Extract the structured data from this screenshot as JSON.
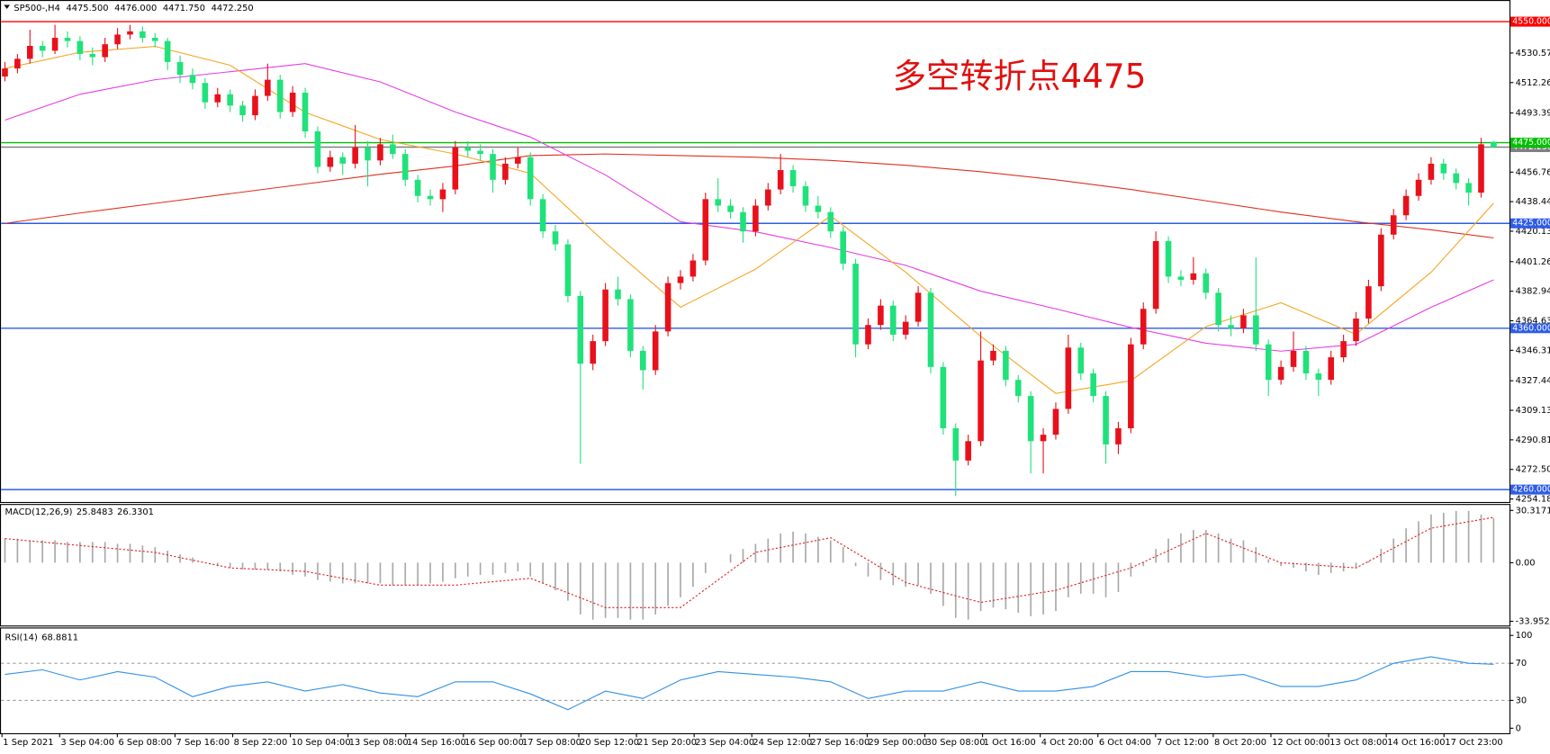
{
  "header": {
    "symbol": "SP500-,H4",
    "ohlc": [
      "4475.500",
      "4476.000",
      "4471.750",
      "4472.250"
    ]
  },
  "chart_data": [
    {
      "type": "candlestick",
      "annotation": "多空转折点4475",
      "up_color": "#e8111b",
      "down_color": "#1fe27a",
      "ylim": [
        4252.3,
        4562.8
      ],
      "yticks": [
        4530.575,
        {
          "value": 4512.26,
          "label": "4512.260"
        },
        {
          "value": 4493.39,
          "label": "4493.390"
        },
        {
          "value": 4456.76,
          "label": "4456.760"
        },
        4438.445,
        {
          "value": 4420.13,
          "label": "4420.130"
        },
        4401.265,
        4382.945,
        {
          "value": 4364.63,
          "label": "4364.630"
        },
        4346.315,
        4327.445,
        {
          "value": 4309.13,
          "label": "4309.130"
        },
        4290.815,
        {
          "value": 4272.5,
          "label": "4272.500"
        },
        4254.185
      ],
      "levels": [
        {
          "value": 4550,
          "label": "4550.000",
          "color": "#ff0000"
        },
        {
          "value": 4472.25,
          "label": "4472.250",
          "color": "#808080"
        },
        {
          "value": 4475,
          "label": "4475.000",
          "color": "#00c000"
        },
        {
          "value": 4425,
          "label": "4425.000",
          "color": "#2e5ce6"
        },
        {
          "value": 4360,
          "label": "4360.000",
          "color": "#2e5ce6"
        },
        {
          "value": 4260,
          "label": "4260.000",
          "color": "#2e5ce6"
        }
      ],
      "candles": [
        [
          4516,
          4525,
          4513,
          4521
        ],
        [
          4521,
          4530,
          4518,
          4527
        ],
        [
          4527,
          4545,
          4524,
          4535
        ],
        [
          4535,
          4538,
          4528,
          4532
        ],
        [
          4532,
          4548,
          4530,
          4540
        ],
        [
          4540,
          4544,
          4534,
          4538
        ],
        [
          4538,
          4541,
          4526,
          4530
        ],
        [
          4530,
          4534,
          4523,
          4528
        ],
        [
          4528,
          4540,
          4525,
          4536
        ],
        [
          4536,
          4546,
          4533,
          4542
        ],
        [
          4542,
          4548,
          4539,
          4544
        ],
        [
          4544,
          4547,
          4537,
          4540
        ],
        [
          4540,
          4543,
          4534,
          4538
        ],
        [
          4538,
          4540,
          4520,
          4525
        ],
        [
          4525,
          4529,
          4512,
          4517
        ],
        [
          4517,
          4521,
          4508,
          4512
        ],
        [
          4512,
          4515,
          4496,
          4500
        ],
        [
          4500,
          4509,
          4497,
          4505
        ],
        [
          4505,
          4508,
          4494,
          4498
        ],
        [
          4498,
          4501,
          4488,
          4492
        ],
        [
          4492,
          4508,
          4489,
          4504
        ],
        [
          4504,
          4524,
          4501,
          4514
        ],
        [
          4514,
          4517,
          4490,
          4494
        ],
        [
          4494,
          4510,
          4491,
          4506
        ],
        [
          4506,
          4509,
          4478,
          4482
        ],
        [
          4482,
          4485,
          4456,
          4460
        ],
        [
          4460,
          4470,
          4457,
          4466
        ],
        [
          4466,
          4469,
          4455,
          4462
        ],
        [
          4462,
          4486,
          4459,
          4472
        ],
        [
          4472,
          4476,
          4448,
          4464
        ],
        [
          4464,
          4478,
          4461,
          4474
        ],
        [
          4474,
          4480,
          4465,
          4468
        ],
        [
          4468,
          4471,
          4448,
          4452
        ],
        [
          4452,
          4455,
          4438,
          4442
        ],
        [
          4442,
          4446,
          4436,
          4440
        ],
        [
          4440,
          4450,
          4432,
          4446
        ],
        [
          4446,
          4476,
          4443,
          4472
        ],
        [
          4472,
          4476,
          4466,
          4470
        ],
        [
          4470,
          4474,
          4464,
          4468
        ],
        [
          4468,
          4471,
          4444,
          4452
        ],
        [
          4452,
          4466,
          4449,
          4462
        ],
        [
          4462,
          4472,
          4459,
          4466
        ],
        [
          4466,
          4469,
          4436,
          4440
        ],
        [
          4440,
          4443,
          4416,
          4420
        ],
        [
          4420,
          4424,
          4408,
          4412
        ],
        [
          4412,
          4415,
          4376,
          4380
        ],
        [
          4380,
          4383,
          4276,
          4338
        ],
        [
          4338,
          4356,
          4334,
          4352
        ],
        [
          4352,
          4388,
          4349,
          4384
        ],
        [
          4384,
          4392,
          4374,
          4378
        ],
        [
          4378,
          4381,
          4342,
          4346
        ],
        [
          4346,
          4349,
          4322,
          4334
        ],
        [
          4334,
          4362,
          4331,
          4358
        ],
        [
          4358,
          4392,
          4355,
          4388
        ],
        [
          4388,
          4396,
          4384,
          4392
        ],
        [
          4392,
          4406,
          4389,
          4402
        ],
        [
          4402,
          4444,
          4399,
          4440
        ],
        [
          4440,
          4453,
          4432,
          4436
        ],
        [
          4436,
          4440,
          4428,
          4432
        ],
        [
          4432,
          4435,
          4413,
          4420
        ],
        [
          4420,
          4440,
          4417,
          4436
        ],
        [
          4436,
          4450,
          4433,
          4446
        ],
        [
          4446,
          4468,
          4443,
          4458
        ],
        [
          4458,
          4461,
          4444,
          4448
        ],
        [
          4448,
          4451,
          4432,
          4436
        ],
        [
          4436,
          4442,
          4428,
          4432
        ],
        [
          4432,
          4435,
          4416,
          4420
        ],
        [
          4420,
          4423,
          4396,
          4400
        ],
        [
          4400,
          4403,
          4342,
          4350
        ],
        [
          4350,
          4366,
          4347,
          4362
        ],
        [
          4362,
          4378,
          4359,
          4374
        ],
        [
          4374,
          4377,
          4352,
          4356
        ],
        [
          4356,
          4368,
          4353,
          4364
        ],
        [
          4364,
          4386,
          4361,
          4382
        ],
        [
          4382,
          4385,
          4332,
          4336
        ],
        [
          4336,
          4339,
          4294,
          4298
        ],
        [
          4298,
          4301,
          4256,
          4278
        ],
        [
          4278,
          4294,
          4275,
          4290
        ],
        [
          4290,
          4358,
          4287,
          4340
        ],
        [
          4340,
          4350,
          4337,
          4346
        ],
        [
          4346,
          4349,
          4324,
          4328
        ],
        [
          4328,
          4331,
          4314,
          4318
        ],
        [
          4318,
          4321,
          4270,
          4290
        ],
        [
          4290,
          4298,
          4270,
          4294
        ],
        [
          4294,
          4314,
          4291,
          4310
        ],
        [
          4310,
          4356,
          4307,
          4348
        ],
        [
          4348,
          4351,
          4328,
          4332
        ],
        [
          4332,
          4335,
          4314,
          4318
        ],
        [
          4318,
          4321,
          4276,
          4288
        ],
        [
          4288,
          4302,
          4282,
          4298
        ],
        [
          4298,
          4354,
          4295,
          4350
        ],
        [
          4350,
          4376,
          4347,
          4372
        ],
        [
          4372,
          4420,
          4369,
          4414
        ],
        [
          4414,
          4417,
          4388,
          4392
        ],
        [
          4392,
          4396,
          4386,
          4390
        ],
        [
          4390,
          4404,
          4387,
          4394
        ],
        [
          4394,
          4397,
          4378,
          4382
        ],
        [
          4382,
          4385,
          4358,
          4362
        ],
        [
          4362,
          4368,
          4355,
          4360
        ],
        [
          4360,
          4372,
          4357,
          4368
        ],
        [
          4368,
          4404,
          4346,
          4350
        ],
        [
          4350,
          4353,
          4318,
          4328
        ],
        [
          4328,
          4340,
          4325,
          4336
        ],
        [
          4336,
          4358,
          4333,
          4346
        ],
        [
          4346,
          4349,
          4328,
          4332
        ],
        [
          4332,
          4335,
          4318,
          4328
        ],
        [
          4328,
          4346,
          4325,
          4342
        ],
        [
          4342,
          4356,
          4339,
          4352
        ],
        [
          4352,
          4370,
          4349,
          4366
        ],
        [
          4366,
          4390,
          4363,
          4386
        ],
        [
          4386,
          4422,
          4383,
          4418
        ],
        [
          4418,
          4434,
          4415,
          4430
        ],
        [
          4430,
          4446,
          4427,
          4442
        ],
        [
          4442,
          4456,
          4439,
          4452
        ],
        [
          4452,
          4466,
          4449,
          4462
        ],
        [
          4462,
          4465,
          4452,
          4456
        ],
        [
          4456,
          4459,
          4446,
          4450
        ],
        [
          4450,
          4453,
          4436,
          4444
        ],
        [
          4444,
          4478,
          4441,
          4474
        ],
        [
          4475.5,
          4476,
          4471.75,
          4472.25
        ]
      ],
      "ma_x": [
        0,
        6,
        12,
        18,
        24,
        30,
        36,
        42,
        48,
        54,
        60,
        66,
        72,
        78,
        84,
        90,
        96,
        102,
        108,
        114,
        119
      ],
      "series": [
        {
          "color": "#e0301e",
          "values": [
            4425,
            4431.4,
            4437.4,
            4443.4,
            4449.4,
            4455.4,
            4460.6,
            4467,
            4468,
            4467,
            4466,
            4464,
            4461,
            4457,
            4452,
            4446,
            4439,
            4432,
            4426,
            4421,
            4416
          ]
        },
        {
          "color": "#e63ce6",
          "values": [
            4489,
            4505,
            4514,
            4519,
            4524,
            4512.7,
            4494,
            4478.5,
            4455,
            4426,
            4419.8,
            4410,
            4399,
            4383,
            4372,
            4360.5,
            4350.7,
            4345.8,
            4350,
            4373,
            4390
          ]
        },
        {
          "color": "#f5a623",
          "values": [
            4521,
            4531,
            4534.7,
            4523,
            4493.8,
            4477,
            4468,
            4456,
            4413,
            4373,
            4396.6,
            4429.6,
            4394.7,
            4355,
            4319.6,
            4327.5,
            4361,
            4375.8,
            4356.2,
            4394.7,
            4437.5
          ]
        }
      ]
    },
    {
      "type": "macd",
      "title": "MACD(12,26,9)",
      "bar_color": "#a8a8a8",
      "signal_color": "#e0201e",
      "ylim": [
        -36.4,
        33.5
      ],
      "yticks": [
        30.3171,
        {
          "value": 0,
          "label": "0.00"
        },
        -33.9522
      ],
      "values": [
        14,
        14,
        13,
        13,
        13,
        12,
        12,
        12,
        12,
        11,
        11,
        10,
        9,
        7,
        5,
        3,
        0,
        -2,
        -3,
        -4,
        -4,
        -4,
        -5,
        -7,
        -8,
        -10,
        -11,
        -12,
        -12,
        -12,
        -12,
        -13,
        -13,
        -13,
        -12,
        -11,
        -9,
        -8,
        -7,
        -7,
        -6,
        -5,
        -8,
        -12,
        -16,
        -22,
        -30,
        -33,
        -32,
        -32,
        -33,
        -33,
        -30,
        -25,
        -20,
        -14,
        -6,
        0,
        5,
        8,
        11,
        14,
        17,
        18,
        17,
        15,
        13,
        9,
        -2,
        -8,
        -10,
        -13,
        -14,
        -13,
        -18,
        -25,
        -32,
        -33,
        -28,
        -26,
        -27,
        -29,
        -31,
        -30,
        -28,
        -20,
        -18,
        -18,
        -20,
        -17,
        -8,
        -2,
        8,
        14,
        17,
        19,
        19,
        17,
        14,
        13,
        9,
        2,
        -2,
        -3,
        -5,
        -7,
        -6,
        -5,
        -3,
        1,
        8,
        14,
        20,
        24,
        28,
        29,
        30,
        30,
        28,
        25.8483
      ],
      "signal_x": [
        0,
        6,
        12,
        18,
        24,
        30,
        36,
        42,
        48,
        54,
        60,
        66,
        72,
        78,
        84,
        90,
        96,
        102,
        108,
        114,
        119
      ],
      "signal": [
        14,
        10,
        6,
        -3,
        -5,
        -13,
        -13,
        -9,
        -26,
        -26,
        6,
        14.5,
        -11.5,
        -23,
        -16,
        -3,
        17,
        0,
        -3,
        20,
        26.3301
      ]
    },
    {
      "type": "rsi",
      "title": "RSI(14)",
      "color": "#2f8fe8",
      "ylim": [
        -5.4,
        107.5
      ],
      "yticks": [
        100,
        70,
        30,
        0
      ],
      "levels": [
        70,
        30
      ],
      "x": [
        0,
        3,
        6,
        9,
        12,
        15,
        18,
        21,
        24,
        27,
        30,
        33,
        36,
        39,
        42,
        45,
        48,
        51,
        54,
        57,
        60,
        63,
        66,
        69,
        72,
        75,
        78,
        81,
        84,
        87,
        90,
        93,
        96,
        99,
        102,
        105,
        108,
        111,
        114,
        117,
        119
      ],
      "values": [
        58,
        63,
        52,
        61,
        55,
        34,
        45,
        50,
        40,
        47,
        38,
        34,
        50,
        50,
        37,
        20,
        40,
        32,
        52,
        61,
        58,
        55,
        50,
        32,
        40,
        40,
        50,
        40,
        40,
        45,
        61,
        61,
        55,
        58,
        45,
        45,
        52,
        70,
        77,
        70,
        68.8811
      ]
    }
  ],
  "x_labels": [
    "1 Sep 2021",
    "3 Sep 04:00",
    "6 Sep 08:00",
    "7 Sep 16:00",
    "8 Sep 22:00",
    "10 Sep 04:00",
    "13 Sep 08:00",
    "14 Sep 16:00",
    "16 Sep 00:00",
    "17 Sep 08:00",
    "20 Sep 12:00",
    "21 Sep 20:00",
    "23 Sep 04:00",
    "24 Sep 12:00",
    "27 Sep 16:00",
    "29 Sep 00:00",
    "30 Sep 08:00",
    "1 Oct 16:00",
    "4 Oct 20:00",
    "6 Oct 04:00",
    "7 Oct 12:00",
    "8 Oct 20:00",
    "12 Oct 00:00",
    "13 Oct 08:00",
    "14 Oct 16:00",
    "17 Oct 23:00"
  ]
}
